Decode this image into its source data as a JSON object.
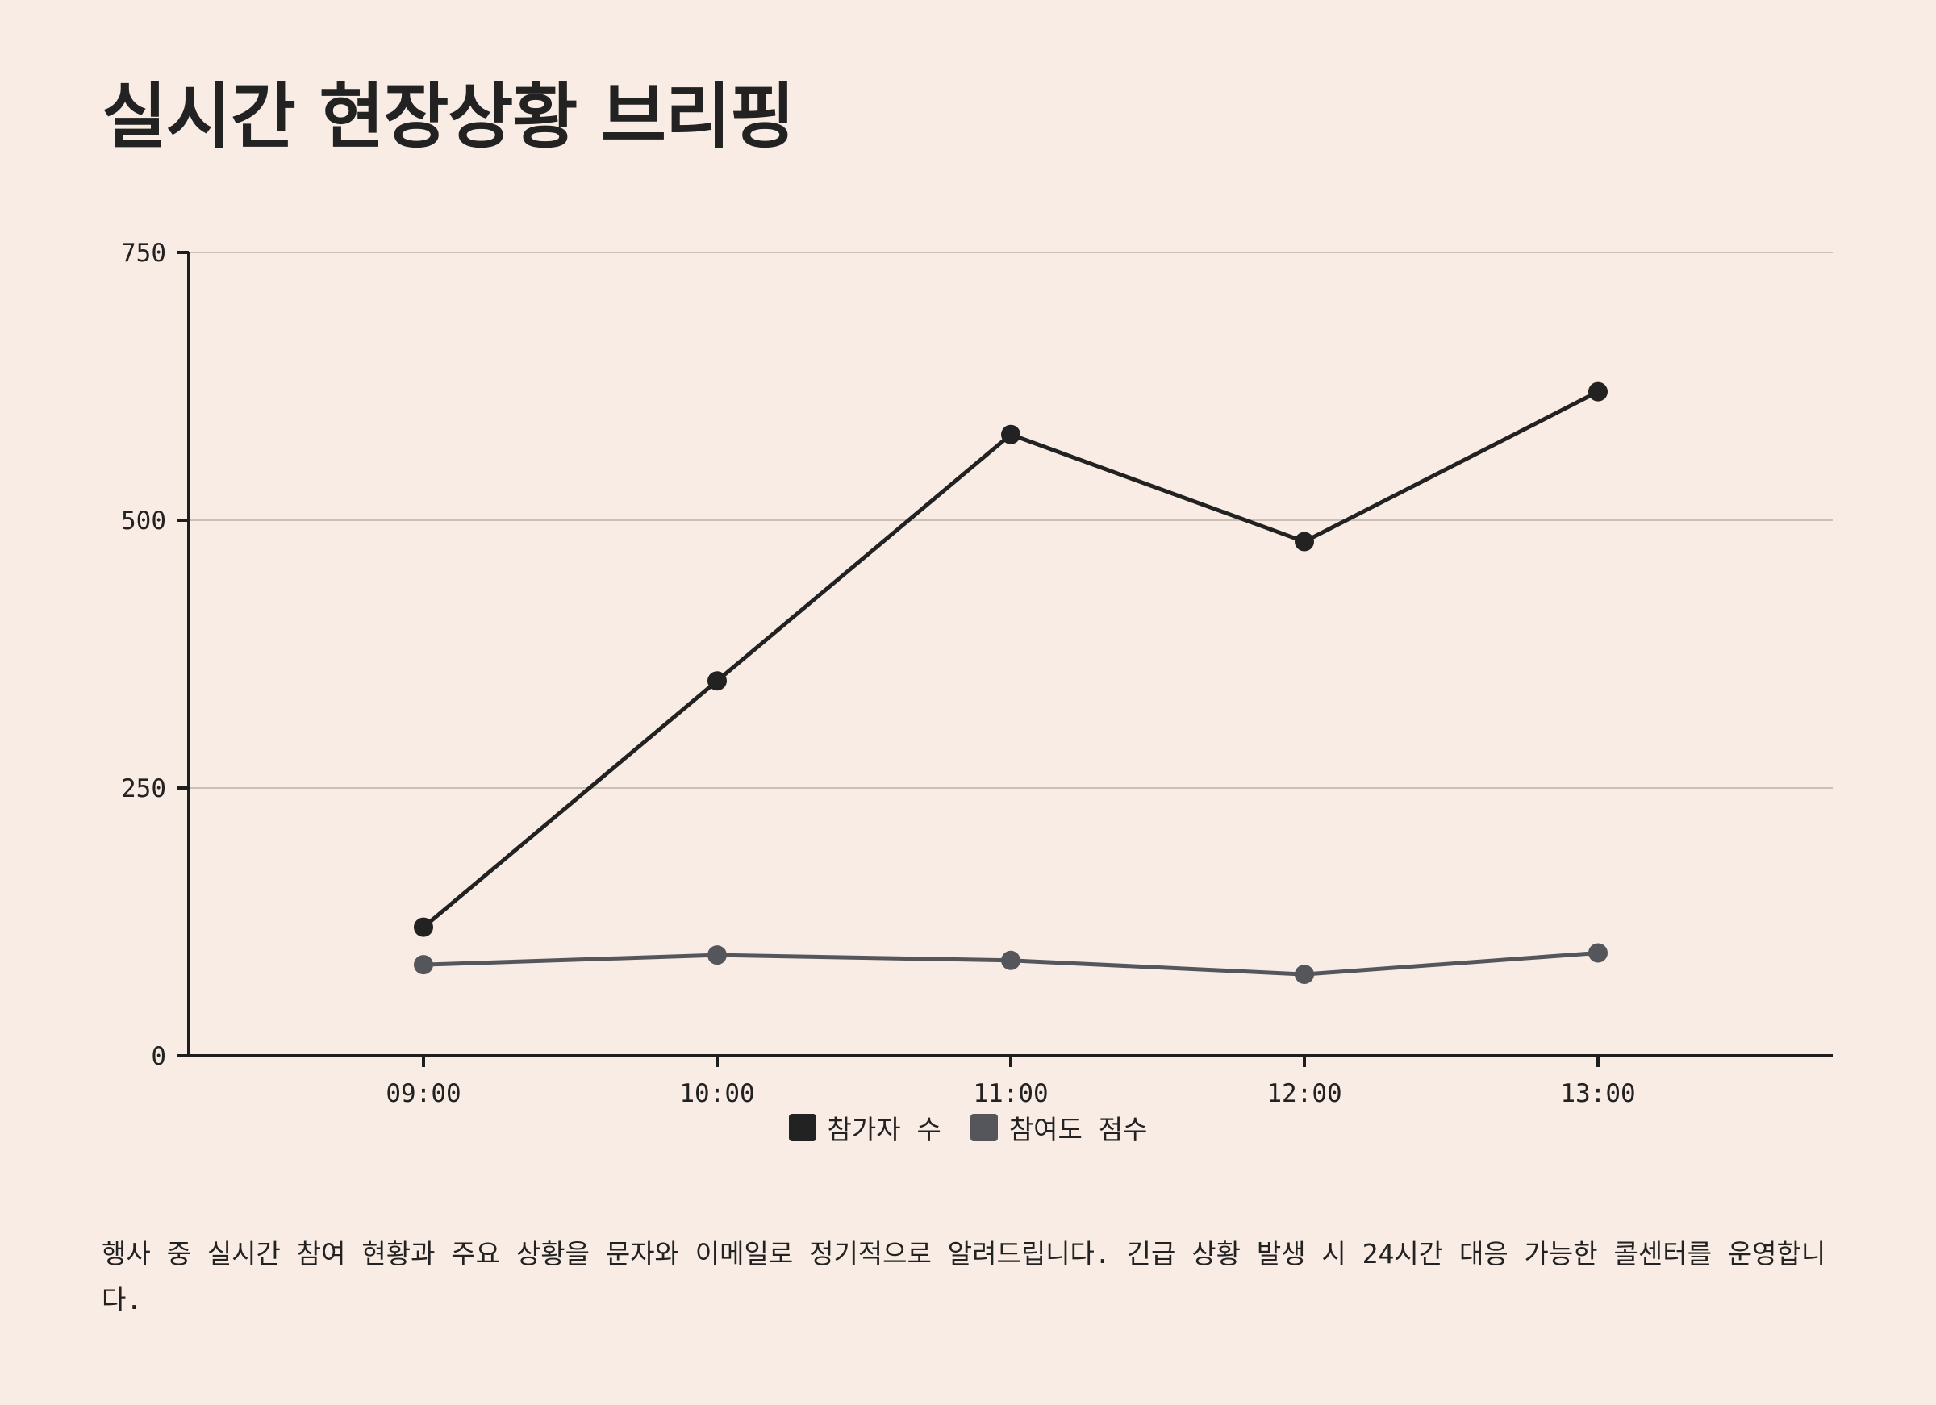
{
  "title": "실시간 현장상황 브리핑",
  "note": "행사 중 실시간 참여 현황과 주요 상황을 문자와 이메일로 정기적으로 알려드립니다. 긴급 상황 발생 시 24시간 대응 가능한 콜센터를 운영합니다.",
  "colors": {
    "background": "#f8ece4",
    "axis": "#1e1e1e",
    "grid": "#cdbfb6",
    "series_primary": "#222222",
    "series_secondary": "#54565b"
  },
  "chart_data": {
    "type": "line",
    "x": [
      "09:00",
      "10:00",
      "11:00",
      "12:00",
      "13:00"
    ],
    "ylim": [
      0,
      750
    ],
    "yticks": [
      0,
      250,
      500,
      750
    ],
    "grid": true,
    "legend_position": "bottom-center",
    "series": [
      {
        "name": "참가자 수",
        "values": [
          120,
          350,
          580,
          480,
          620
        ],
        "color": "#222222"
      },
      {
        "name": "참여도 점수",
        "values": [
          85,
          94,
          89,
          76,
          96
        ],
        "color": "#54565b"
      }
    ]
  }
}
